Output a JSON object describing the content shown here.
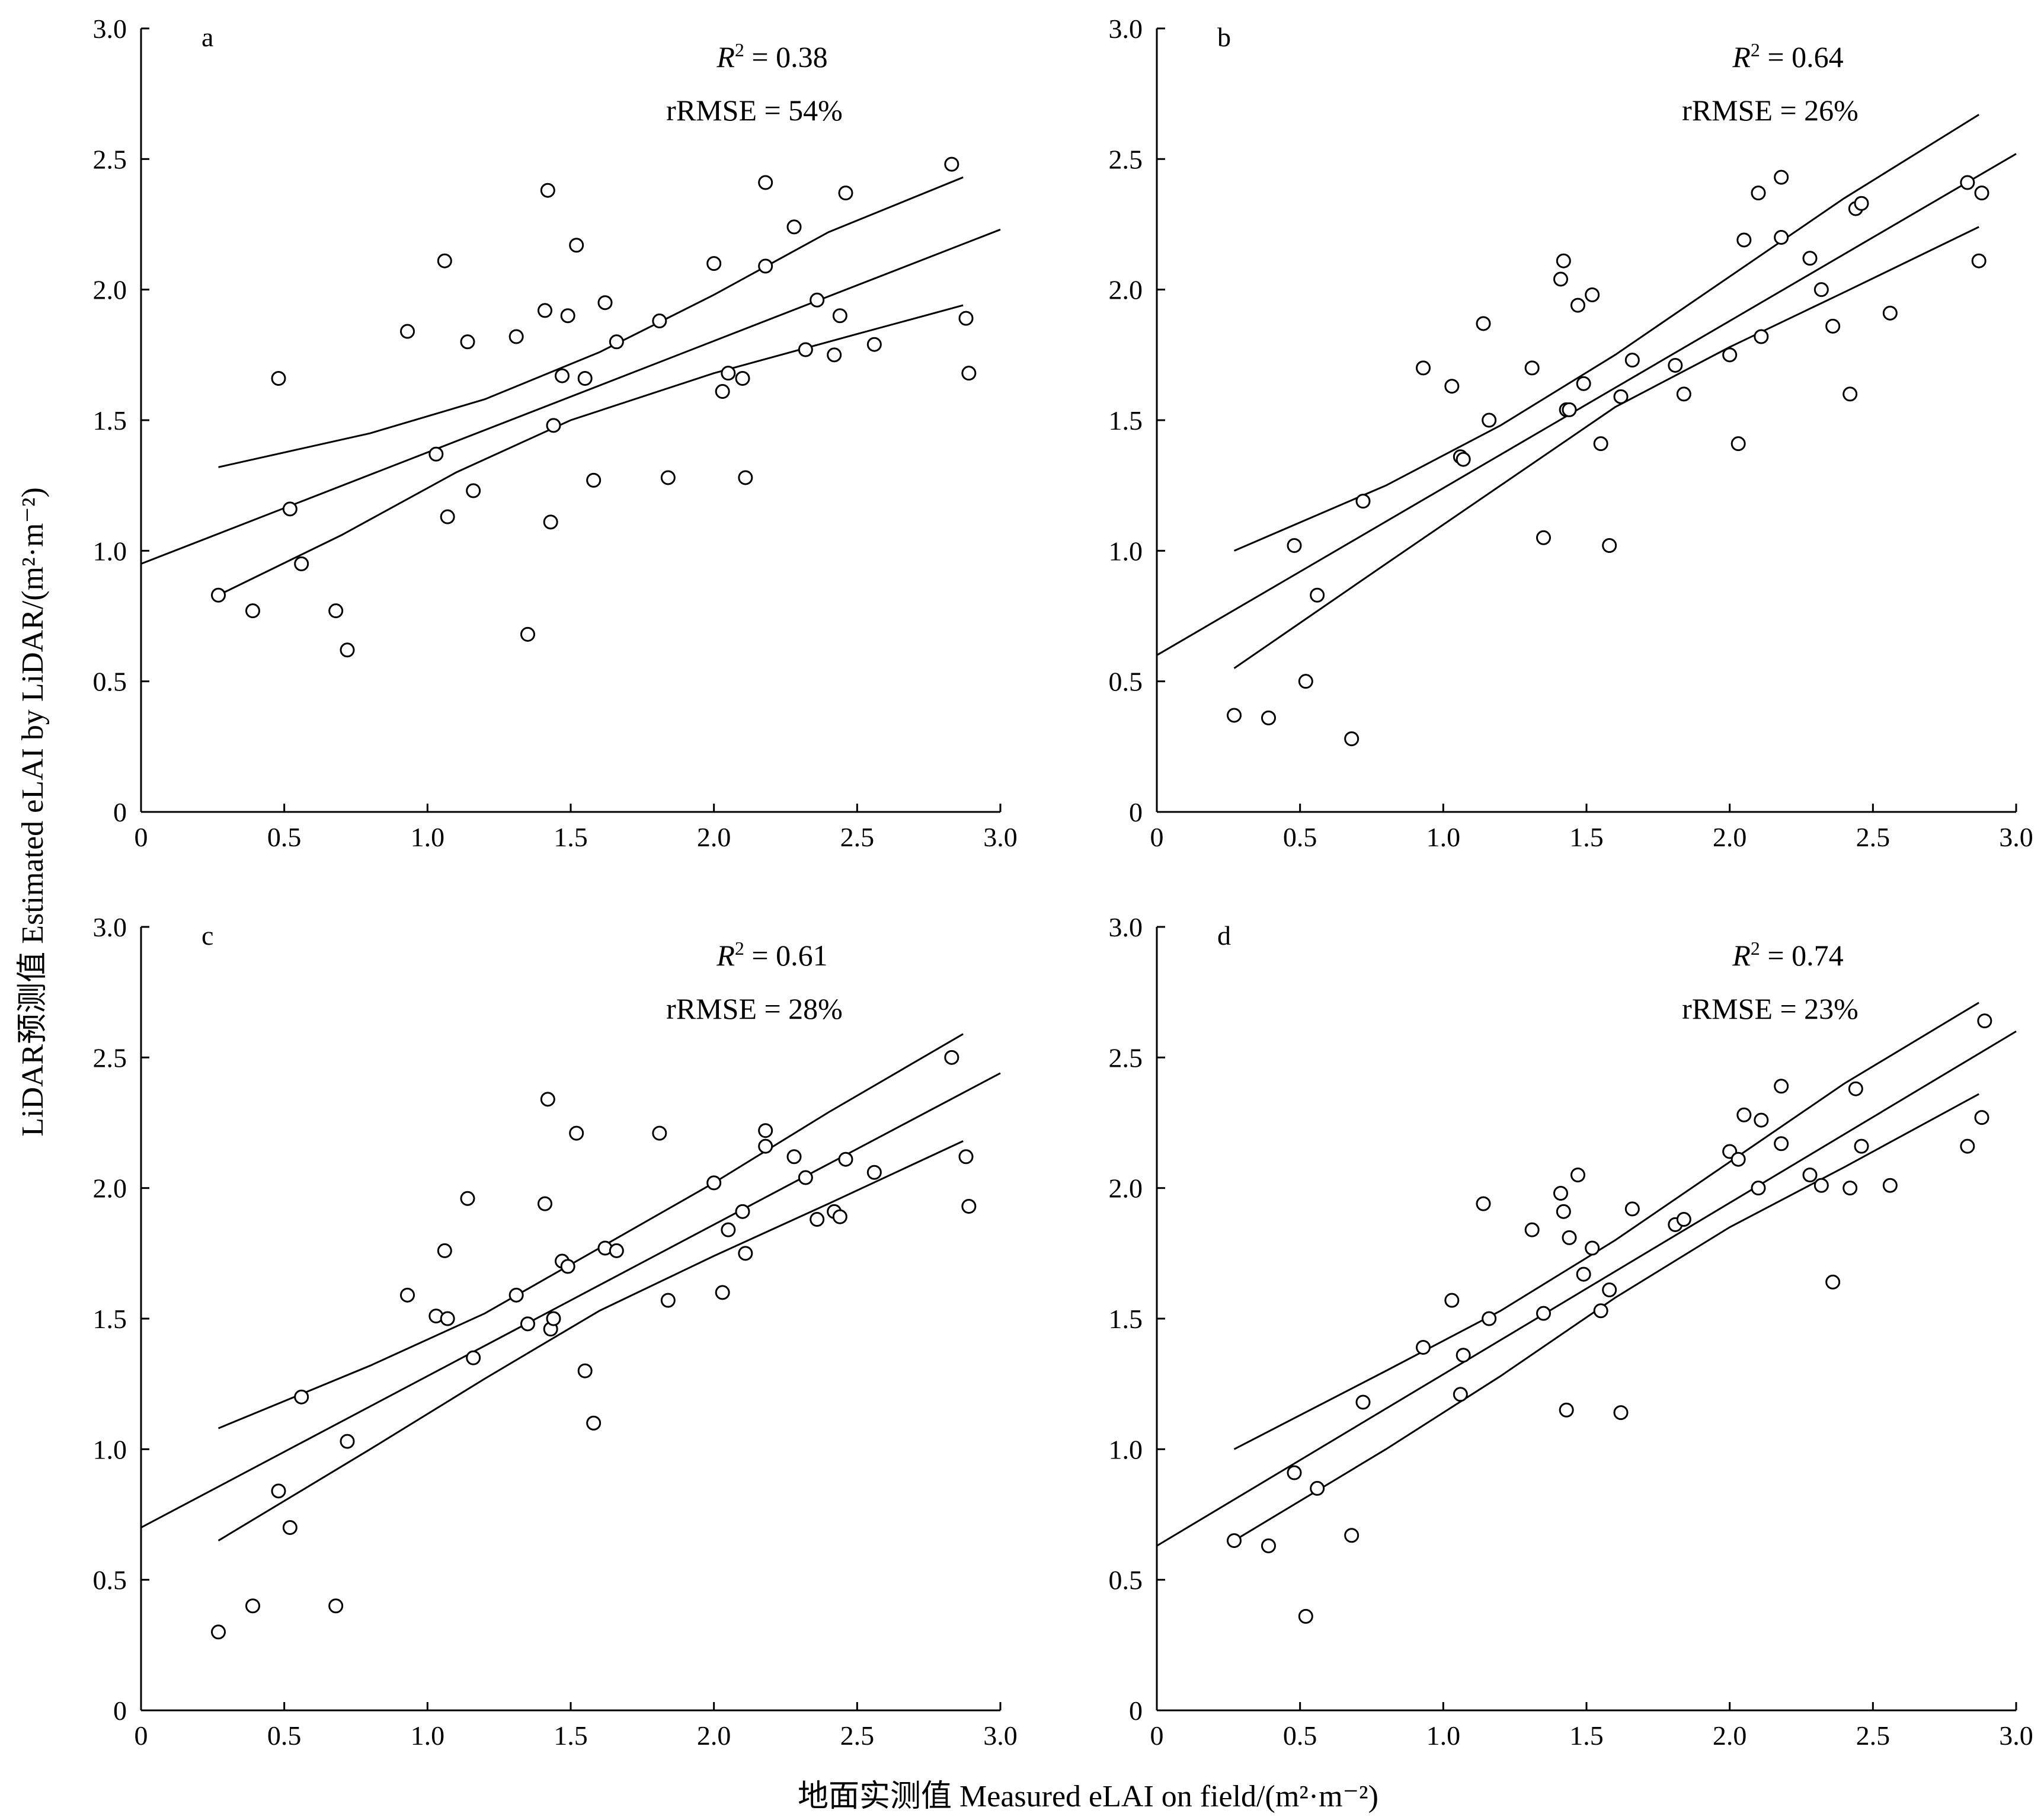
{
  "figure": {
    "xlabel": "地面实测值 Measured eLAI on field/(m²·m⁻²)",
    "ylabel": "LiDAR预测值 Estimated eLAI by LiDAR/(m²·m⁻²)"
  },
  "chart_data": [
    {
      "type": "scatter",
      "panel": "a",
      "r2_label": "R",
      "r2_value": "= 0.38",
      "rrmse": "rRMSE = 54%",
      "xlim": [
        0,
        3.0
      ],
      "ylim": [
        0,
        3.0
      ],
      "xticks": [
        "0",
        "0.5",
        "1.0",
        "1.5",
        "2.0",
        "2.5",
        "3.0"
      ],
      "yticks": [
        "0",
        "0.5",
        "1.0",
        "1.5",
        "2.0",
        "2.5",
        "3.0"
      ],
      "fit": {
        "x": [
          0,
          3.0
        ],
        "y": [
          0.95,
          2.23
        ]
      },
      "ci_upper": {
        "x": [
          0.27,
          0.8,
          1.2,
          1.6,
          2.0,
          2.4,
          2.87
        ],
        "y": [
          1.32,
          1.45,
          1.58,
          1.76,
          1.98,
          2.22,
          2.43
        ]
      },
      "ci_lower": {
        "x": [
          0.27,
          0.7,
          1.1,
          1.5,
          2.0,
          2.5,
          2.87
        ],
        "y": [
          0.83,
          1.06,
          1.3,
          1.5,
          1.68,
          1.83,
          1.94
        ]
      },
      "points": [
        [
          0.27,
          0.83
        ],
        [
          0.39,
          0.77
        ],
        [
          0.48,
          1.66
        ],
        [
          0.52,
          1.16
        ],
        [
          0.56,
          0.95
        ],
        [
          0.68,
          0.77
        ],
        [
          0.72,
          0.62
        ],
        [
          0.93,
          1.84
        ],
        [
          1.03,
          1.37
        ],
        [
          1.06,
          2.11
        ],
        [
          1.07,
          1.13
        ],
        [
          1.14,
          1.8
        ],
        [
          1.16,
          1.23
        ],
        [
          1.31,
          1.82
        ],
        [
          1.35,
          0.68
        ],
        [
          1.41,
          1.92
        ],
        [
          1.42,
          2.38
        ],
        [
          1.43,
          1.11
        ],
        [
          1.44,
          1.48
        ],
        [
          1.47,
          1.67
        ],
        [
          1.49,
          1.9
        ],
        [
          1.52,
          2.17
        ],
        [
          1.55,
          1.66
        ],
        [
          1.58,
          1.27
        ],
        [
          1.62,
          1.95
        ],
        [
          1.66,
          1.8
        ],
        [
          1.81,
          1.88
        ],
        [
          1.84,
          1.28
        ],
        [
          2.0,
          2.1
        ],
        [
          2.03,
          1.61
        ],
        [
          2.05,
          1.68
        ],
        [
          2.1,
          1.66
        ],
        [
          2.11,
          1.28
        ],
        [
          2.18,
          2.41
        ],
        [
          2.18,
          2.09
        ],
        [
          2.28,
          2.24
        ],
        [
          2.32,
          1.77
        ],
        [
          2.36,
          1.96
        ],
        [
          2.42,
          1.75
        ],
        [
          2.44,
          1.9
        ],
        [
          2.46,
          2.37
        ],
        [
          2.56,
          1.79
        ],
        [
          2.83,
          2.48
        ],
        [
          2.88,
          1.89
        ],
        [
          2.89,
          1.68
        ]
      ]
    },
    {
      "type": "scatter",
      "panel": "b",
      "r2_label": "R",
      "r2_value": "= 0.64",
      "rrmse": "rRMSE = 26%",
      "xlim": [
        0,
        3.0
      ],
      "ylim": [
        0,
        3.0
      ],
      "xticks": [
        "0",
        "0.5",
        "1.0",
        "1.5",
        "2.0",
        "2.5",
        "3.0"
      ],
      "yticks": [
        "0",
        "0.5",
        "1.0",
        "1.5",
        "2.0",
        "2.5",
        "3.0"
      ],
      "fit": {
        "x": [
          0,
          3.0
        ],
        "y": [
          0.6,
          2.52
        ]
      },
      "ci_upper": {
        "x": [
          0.27,
          0.8,
          1.2,
          1.6,
          2.0,
          2.4,
          2.87
        ],
        "y": [
          1.0,
          1.25,
          1.48,
          1.75,
          2.05,
          2.35,
          2.67
        ]
      },
      "ci_lower": {
        "x": [
          0.27,
          0.8,
          1.2,
          1.6,
          2.0,
          2.4,
          2.87
        ],
        "y": [
          0.55,
          0.95,
          1.25,
          1.55,
          1.78,
          1.99,
          2.24
        ]
      },
      "points": [
        [
          0.27,
          0.37
        ],
        [
          0.39,
          0.36
        ],
        [
          0.48,
          1.02
        ],
        [
          0.52,
          0.5
        ],
        [
          0.56,
          0.83
        ],
        [
          0.68,
          0.28
        ],
        [
          0.72,
          1.19
        ],
        [
          0.93,
          1.7
        ],
        [
          1.03,
          1.63
        ],
        [
          1.06,
          1.36
        ],
        [
          1.07,
          1.35
        ],
        [
          1.14,
          1.87
        ],
        [
          1.16,
          1.5
        ],
        [
          1.31,
          1.7
        ],
        [
          1.35,
          1.05
        ],
        [
          1.41,
          2.04
        ],
        [
          1.42,
          2.11
        ],
        [
          1.43,
          1.54
        ],
        [
          1.44,
          1.54
        ],
        [
          1.47,
          1.94
        ],
        [
          1.49,
          1.64
        ],
        [
          1.52,
          1.98
        ],
        [
          1.55,
          1.41
        ],
        [
          1.58,
          1.02
        ],
        [
          1.62,
          1.59
        ],
        [
          1.66,
          1.73
        ],
        [
          1.81,
          1.71
        ],
        [
          1.84,
          1.6
        ],
        [
          2.0,
          1.75
        ],
        [
          2.03,
          1.41
        ],
        [
          2.05,
          2.19
        ],
        [
          2.1,
          2.37
        ],
        [
          2.11,
          1.82
        ],
        [
          2.18,
          2.43
        ],
        [
          2.18,
          2.2
        ],
        [
          2.28,
          2.12
        ],
        [
          2.32,
          2.0
        ],
        [
          2.36,
          1.86
        ],
        [
          2.42,
          1.6
        ],
        [
          2.44,
          2.31
        ],
        [
          2.46,
          2.33
        ],
        [
          2.56,
          1.91
        ],
        [
          2.83,
          2.41
        ],
        [
          2.88,
          2.37
        ],
        [
          2.87,
          2.11
        ]
      ]
    },
    {
      "type": "scatter",
      "panel": "c",
      "r2_label": "R",
      "r2_value": "= 0.61",
      "rrmse": "rRMSE = 28%",
      "xlim": [
        0,
        3.0
      ],
      "ylim": [
        0,
        3.0
      ],
      "xticks": [
        "0",
        "0.5",
        "1.0",
        "1.5",
        "2.0",
        "2.5",
        "3.0"
      ],
      "yticks": [
        "0",
        "0.5",
        "1.0",
        "1.5",
        "2.0",
        "2.5",
        "3.0"
      ],
      "fit": {
        "x": [
          0,
          3.0
        ],
        "y": [
          0.7,
          2.44
        ]
      },
      "ci_upper": {
        "x": [
          0.27,
          0.8,
          1.2,
          1.6,
          2.0,
          2.4,
          2.87
        ],
        "y": [
          1.08,
          1.32,
          1.52,
          1.77,
          2.02,
          2.29,
          2.59
        ]
      },
      "ci_lower": {
        "x": [
          0.27,
          0.8,
          1.2,
          1.6,
          2.0,
          2.4,
          2.87
        ],
        "y": [
          0.65,
          1.0,
          1.27,
          1.53,
          1.74,
          1.94,
          2.18
        ]
      },
      "points": [
        [
          0.27,
          0.3
        ],
        [
          0.39,
          0.4
        ],
        [
          0.48,
          0.84
        ],
        [
          0.52,
          0.7
        ],
        [
          0.56,
          1.2
        ],
        [
          0.68,
          0.4
        ],
        [
          0.72,
          1.03
        ],
        [
          0.93,
          1.59
        ],
        [
          1.03,
          1.51
        ],
        [
          1.06,
          1.76
        ],
        [
          1.07,
          1.5
        ],
        [
          1.14,
          1.96
        ],
        [
          1.16,
          1.35
        ],
        [
          1.31,
          1.59
        ],
        [
          1.35,
          1.48
        ],
        [
          1.41,
          1.94
        ],
        [
          1.42,
          2.34
        ],
        [
          1.43,
          1.46
        ],
        [
          1.44,
          1.5
        ],
        [
          1.47,
          1.72
        ],
        [
          1.49,
          1.7
        ],
        [
          1.52,
          2.21
        ],
        [
          1.55,
          1.3
        ],
        [
          1.58,
          1.1
        ],
        [
          1.62,
          1.77
        ],
        [
          1.66,
          1.76
        ],
        [
          1.81,
          2.21
        ],
        [
          1.84,
          1.57
        ],
        [
          2.0,
          2.02
        ],
        [
          2.03,
          1.6
        ],
        [
          2.05,
          1.84
        ],
        [
          2.1,
          1.91
        ],
        [
          2.11,
          1.75
        ],
        [
          2.18,
          2.22
        ],
        [
          2.18,
          2.16
        ],
        [
          2.28,
          2.12
        ],
        [
          2.32,
          2.04
        ],
        [
          2.36,
          1.88
        ],
        [
          2.42,
          1.91
        ],
        [
          2.44,
          1.89
        ],
        [
          2.46,
          2.11
        ],
        [
          2.56,
          2.06
        ],
        [
          2.83,
          2.5
        ],
        [
          2.88,
          2.12
        ],
        [
          2.89,
          1.93
        ]
      ]
    },
    {
      "type": "scatter",
      "panel": "d",
      "r2_label": "R",
      "r2_value": "= 0.74",
      "rrmse": "rRMSE = 23%",
      "xlim": [
        0,
        3.0
      ],
      "ylim": [
        0,
        3.0
      ],
      "xticks": [
        "0",
        "0.5",
        "1.0",
        "1.5",
        "2.0",
        "2.5",
        "3.0"
      ],
      "yticks": [
        "0",
        "0.5",
        "1.0",
        "1.5",
        "2.0",
        "2.5",
        "3.0"
      ],
      "fit": {
        "x": [
          0,
          3.0
        ],
        "y": [
          0.63,
          2.6
        ]
      },
      "ci_upper": {
        "x": [
          0.27,
          0.8,
          1.2,
          1.6,
          2.0,
          2.4,
          2.87
        ],
        "y": [
          1.0,
          1.3,
          1.53,
          1.8,
          2.1,
          2.4,
          2.71
        ]
      },
      "ci_lower": {
        "x": [
          0.27,
          0.8,
          1.2,
          1.6,
          2.0,
          2.4,
          2.87
        ],
        "y": [
          0.65,
          1.0,
          1.28,
          1.58,
          1.85,
          2.08,
          2.36
        ]
      },
      "points": [
        [
          0.27,
          0.65
        ],
        [
          0.39,
          0.63
        ],
        [
          0.48,
          0.91
        ],
        [
          0.52,
          0.36
        ],
        [
          0.56,
          0.85
        ],
        [
          0.68,
          0.67
        ],
        [
          0.72,
          1.18
        ],
        [
          0.93,
          1.39
        ],
        [
          1.03,
          1.57
        ],
        [
          1.06,
          1.21
        ],
        [
          1.07,
          1.36
        ],
        [
          1.14,
          1.94
        ],
        [
          1.16,
          1.5
        ],
        [
          1.31,
          1.84
        ],
        [
          1.35,
          1.52
        ],
        [
          1.41,
          1.98
        ],
        [
          1.42,
          1.91
        ],
        [
          1.43,
          1.15
        ],
        [
          1.44,
          1.81
        ],
        [
          1.47,
          2.05
        ],
        [
          1.49,
          1.67
        ],
        [
          1.52,
          1.77
        ],
        [
          1.55,
          1.53
        ],
        [
          1.58,
          1.61
        ],
        [
          1.62,
          1.14
        ],
        [
          1.66,
          1.92
        ],
        [
          1.81,
          1.86
        ],
        [
          1.84,
          1.88
        ],
        [
          2.0,
          2.14
        ],
        [
          2.03,
          2.11
        ],
        [
          2.05,
          2.28
        ],
        [
          2.1,
          2.0
        ],
        [
          2.11,
          2.26
        ],
        [
          2.18,
          2.17
        ],
        [
          2.18,
          2.39
        ],
        [
          2.28,
          2.05
        ],
        [
          2.32,
          2.01
        ],
        [
          2.36,
          1.64
        ],
        [
          2.42,
          2.0
        ],
        [
          2.44,
          2.38
        ],
        [
          2.46,
          2.16
        ],
        [
          2.56,
          2.01
        ],
        [
          2.83,
          2.16
        ],
        [
          2.88,
          2.27
        ],
        [
          2.89,
          2.64
        ]
      ]
    }
  ]
}
